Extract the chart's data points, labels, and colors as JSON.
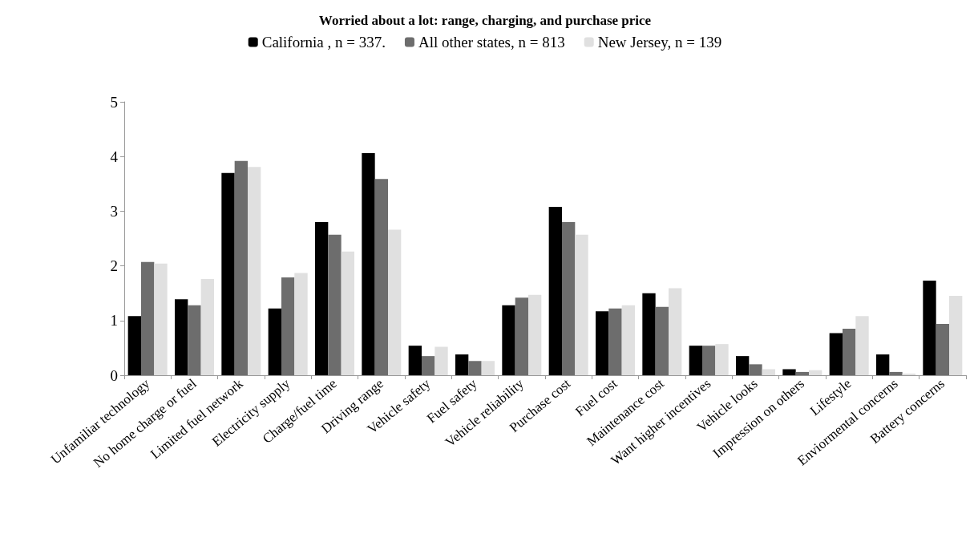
{
  "chart_data": {
    "type": "bar",
    "title": "Worried about a lot: range, charging, and purchase price",
    "categories": [
      "Unfamiliar technology",
      "No home charge or fuel",
      "Limited fuel network",
      "Electricity supply",
      "Charge/fuel time",
      "Driving range",
      "Vehicle safety",
      "Fuel safety",
      "Vehicle reliability",
      "Purchase cost",
      "Fuel cost",
      "Maintenance cost",
      "Want higher incentives",
      "Vehicle looks",
      "Impression on others",
      "Lifestyle",
      "Enviormental concerns",
      "Battery concerns"
    ],
    "series": [
      {
        "name": "California , n = 337.",
        "color": "#000000",
        "values": [
          1.08,
          1.39,
          3.7,
          1.22,
          2.8,
          4.06,
          0.54,
          0.38,
          1.28,
          3.08,
          1.17,
          1.5,
          0.54,
          0.35,
          0.11,
          0.77,
          0.38,
          1.73
        ]
      },
      {
        "name": "All other states, n = 813",
        "color": "#6d6d6d",
        "values": [
          2.07,
          1.28,
          3.92,
          1.79,
          2.57,
          3.59,
          0.35,
          0.26,
          1.42,
          2.8,
          1.22,
          1.25,
          0.54,
          0.2,
          0.06,
          0.85,
          0.06,
          0.94
        ]
      },
      {
        "name": "New Jersey, n = 139",
        "color": "#e0e0e0",
        "values": [
          2.04,
          1.76,
          3.81,
          1.87,
          2.26,
          2.66,
          0.52,
          0.26,
          1.47,
          2.57,
          1.28,
          1.59,
          0.57,
          0.11,
          0.09,
          1.08,
          0.03,
          1.45
        ]
      }
    ],
    "ylim": [
      0,
      5
    ],
    "yticks": [
      0,
      1,
      2,
      3,
      4,
      5
    ],
    "grid": false,
    "legend": "top"
  }
}
